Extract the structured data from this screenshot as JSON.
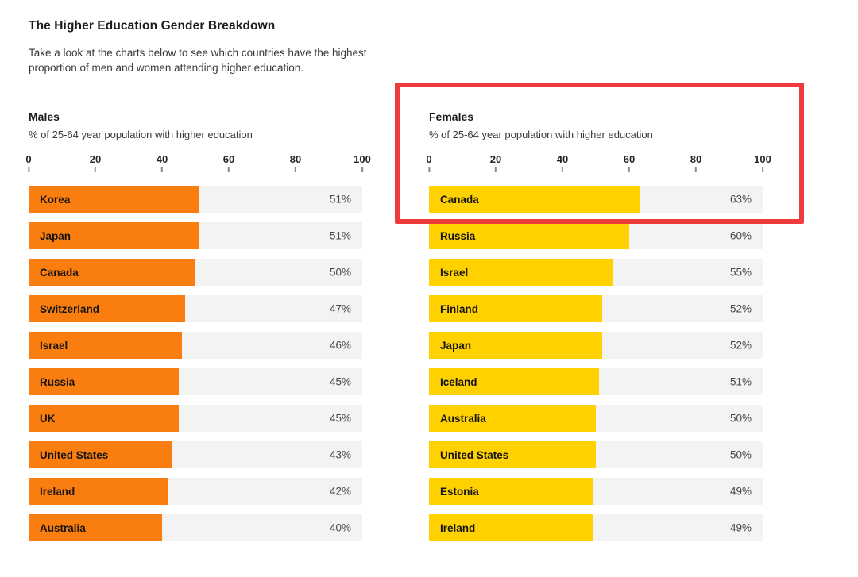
{
  "page": {
    "title": "The Higher Education Gender Breakdown",
    "subtitle_lines": [
      "Take a look at the charts below to see which countries have the highest",
      "proportion of men and women attending higher education."
    ]
  },
  "colors": {
    "male_bar": "#FA7D0F",
    "female_bar": "#FFD100",
    "bar_track": "#F3F3F3",
    "highlight_red": "#EF3B3B"
  },
  "highlight": {
    "note": "red rectangle around Females chart header and top bar (Canada 63%)"
  },
  "chart_data": [
    {
      "type": "bar",
      "orientation": "horizontal",
      "title": "Males",
      "subtitle": "% of 25-64 year population with higher education",
      "categories": [
        "Korea",
        "Japan",
        "Canada",
        "Switzerland",
        "Israel",
        "Russia",
        "UK",
        "United States",
        "Ireland",
        "Australia"
      ],
      "values": [
        51,
        51,
        50,
        47,
        46,
        45,
        45,
        43,
        42,
        40
      ],
      "value_labels": [
        "51%",
        "51%",
        "50%",
        "47%",
        "46%",
        "45%",
        "45%",
        "43%",
        "42%",
        "40%"
      ],
      "xlim": [
        0,
        100
      ],
      "x_ticks": [
        0,
        20,
        40,
        60,
        80,
        100
      ],
      "bar_color": "#FA7D0F",
      "grid": false,
      "legend": false
    },
    {
      "type": "bar",
      "orientation": "horizontal",
      "title": "Females",
      "subtitle": "% of 25-64 year population with higher education",
      "categories": [
        "Canada",
        "Russia",
        "Israel",
        "Finland",
        "Japan",
        "Iceland",
        "Australia",
        "United States",
        "Estonia",
        "Ireland"
      ],
      "values": [
        63,
        60,
        55,
        52,
        52,
        51,
        50,
        50,
        49,
        49
      ],
      "value_labels": [
        "63%",
        "60%",
        "55%",
        "52%",
        "52%",
        "51%",
        "50%",
        "50%",
        "49%",
        "49%"
      ],
      "xlim": [
        0,
        100
      ],
      "x_ticks": [
        0,
        20,
        40,
        60,
        80,
        100
      ],
      "bar_color": "#FFD100",
      "grid": false,
      "legend": false
    }
  ]
}
